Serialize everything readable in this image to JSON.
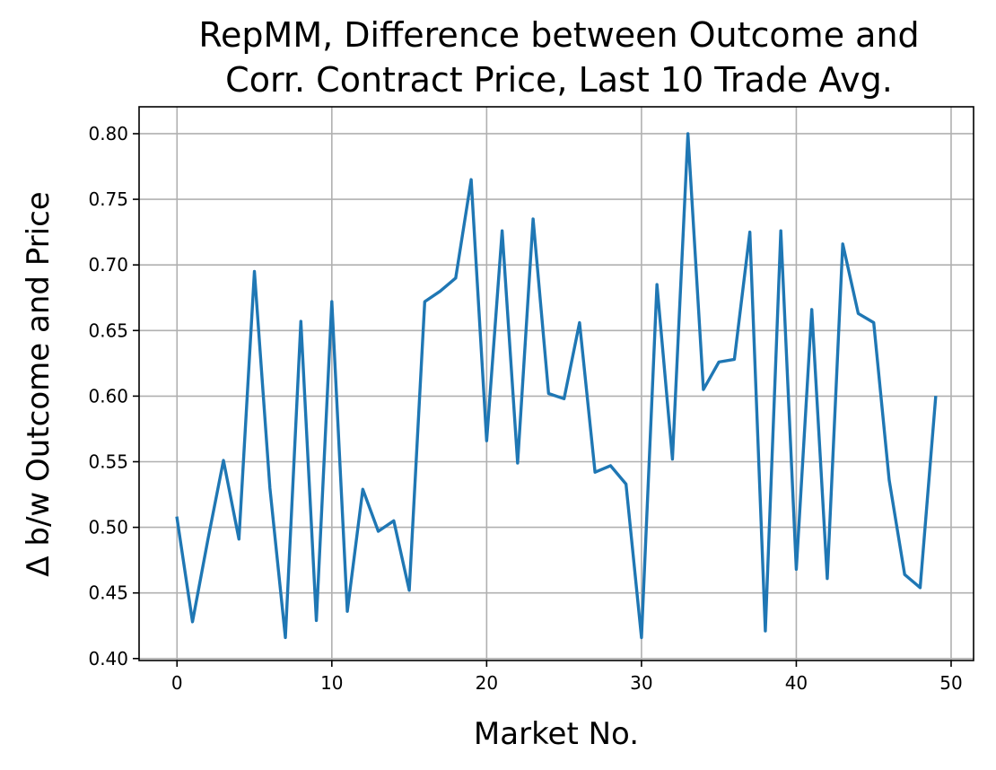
{
  "chart_data": {
    "type": "line",
    "title_line1": "RepMM, Difference between Outcome and",
    "title_line2": "Corr. Contract Price, Last 10 Trade Avg.",
    "xlabel": "Market No.",
    "ylabel": "Δ b/w Outcome and Price",
    "xlim": [
      -2.45,
      51.45
    ],
    "ylim": [
      0.3985,
      0.8205
    ],
    "x_ticks": [
      0,
      10,
      20,
      30,
      40,
      50
    ],
    "x_tick_labels": [
      "0",
      "10",
      "20",
      "30",
      "40",
      "50"
    ],
    "y_ticks": [
      0.4,
      0.45,
      0.5,
      0.55,
      0.6,
      0.65,
      0.7,
      0.75,
      0.8
    ],
    "y_tick_labels": [
      "0.40",
      "0.45",
      "0.50",
      "0.55",
      "0.60",
      "0.65",
      "0.70",
      "0.75",
      "0.80"
    ],
    "grid": true,
    "series": [
      {
        "color": "#1f77b4",
        "x": [
          0,
          1,
          2,
          3,
          4,
          5,
          6,
          7,
          8,
          9,
          10,
          11,
          12,
          13,
          14,
          15,
          16,
          17,
          18,
          19,
          20,
          21,
          22,
          23,
          24,
          25,
          26,
          27,
          28,
          29,
          30,
          31,
          32,
          33,
          34,
          35,
          36,
          37,
          38,
          39,
          40,
          41,
          42,
          43,
          44,
          45,
          46,
          47,
          48,
          49
        ],
        "values": [
          0.507,
          0.428,
          0.491,
          0.551,
          0.491,
          0.695,
          0.53,
          0.416,
          0.657,
          0.429,
          0.672,
          0.436,
          0.529,
          0.497,
          0.505,
          0.452,
          0.672,
          0.68,
          0.69,
          0.765,
          0.566,
          0.726,
          0.549,
          0.735,
          0.602,
          0.598,
          0.656,
          0.542,
          0.547,
          0.533,
          0.416,
          0.685,
          0.552,
          0.8,
          0.605,
          0.626,
          0.628,
          0.725,
          0.421,
          0.726,
          0.468,
          0.666,
          0.461,
          0.716,
          0.663,
          0.656,
          0.536,
          0.464,
          0.454,
          0.599
        ]
      }
    ]
  }
}
